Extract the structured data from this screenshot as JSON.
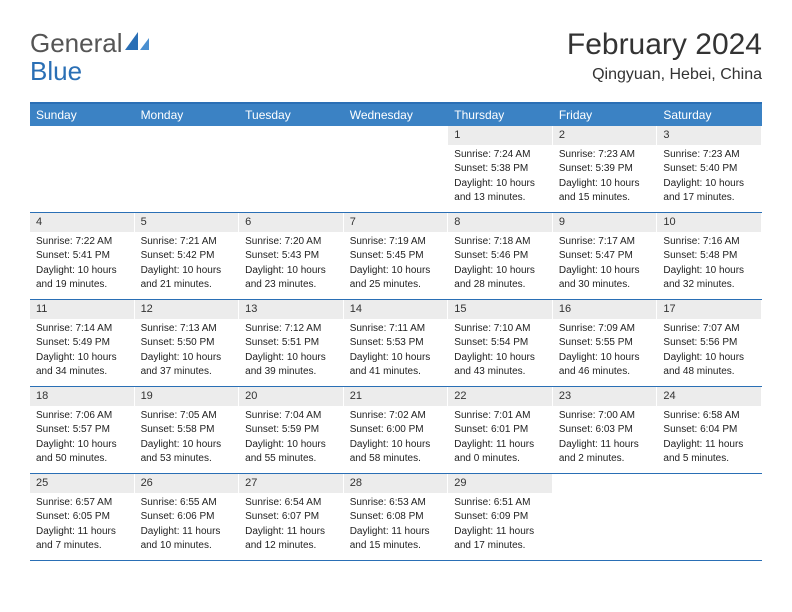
{
  "logo": {
    "text1": "General",
    "text2": "Blue"
  },
  "title": "February 2024",
  "location": "Qingyuan, Hebei, China",
  "colors": {
    "headerBlue": "#3b82c4",
    "borderBlue": "#2a6fb5",
    "dateBg": "#ececec",
    "logoBlue": "#2a6fb5",
    "text": "#333333"
  },
  "dayNames": [
    "Sunday",
    "Monday",
    "Tuesday",
    "Wednesday",
    "Thursday",
    "Friday",
    "Saturday"
  ],
  "weeks": [
    [
      null,
      null,
      null,
      null,
      {
        "d": "1",
        "sr": "7:24 AM",
        "ss": "5:38 PM",
        "dl1": "Daylight: 10 hours",
        "dl2": "and 13 minutes."
      },
      {
        "d": "2",
        "sr": "7:23 AM",
        "ss": "5:39 PM",
        "dl1": "Daylight: 10 hours",
        "dl2": "and 15 minutes."
      },
      {
        "d": "3",
        "sr": "7:23 AM",
        "ss": "5:40 PM",
        "dl1": "Daylight: 10 hours",
        "dl2": "and 17 minutes."
      }
    ],
    [
      {
        "d": "4",
        "sr": "7:22 AM",
        "ss": "5:41 PM",
        "dl1": "Daylight: 10 hours",
        "dl2": "and 19 minutes."
      },
      {
        "d": "5",
        "sr": "7:21 AM",
        "ss": "5:42 PM",
        "dl1": "Daylight: 10 hours",
        "dl2": "and 21 minutes."
      },
      {
        "d": "6",
        "sr": "7:20 AM",
        "ss": "5:43 PM",
        "dl1": "Daylight: 10 hours",
        "dl2": "and 23 minutes."
      },
      {
        "d": "7",
        "sr": "7:19 AM",
        "ss": "5:45 PM",
        "dl1": "Daylight: 10 hours",
        "dl2": "and 25 minutes."
      },
      {
        "d": "8",
        "sr": "7:18 AM",
        "ss": "5:46 PM",
        "dl1": "Daylight: 10 hours",
        "dl2": "and 28 minutes."
      },
      {
        "d": "9",
        "sr": "7:17 AM",
        "ss": "5:47 PM",
        "dl1": "Daylight: 10 hours",
        "dl2": "and 30 minutes."
      },
      {
        "d": "10",
        "sr": "7:16 AM",
        "ss": "5:48 PM",
        "dl1": "Daylight: 10 hours",
        "dl2": "and 32 minutes."
      }
    ],
    [
      {
        "d": "11",
        "sr": "7:14 AM",
        "ss": "5:49 PM",
        "dl1": "Daylight: 10 hours",
        "dl2": "and 34 minutes."
      },
      {
        "d": "12",
        "sr": "7:13 AM",
        "ss": "5:50 PM",
        "dl1": "Daylight: 10 hours",
        "dl2": "and 37 minutes."
      },
      {
        "d": "13",
        "sr": "7:12 AM",
        "ss": "5:51 PM",
        "dl1": "Daylight: 10 hours",
        "dl2": "and 39 minutes."
      },
      {
        "d": "14",
        "sr": "7:11 AM",
        "ss": "5:53 PM",
        "dl1": "Daylight: 10 hours",
        "dl2": "and 41 minutes."
      },
      {
        "d": "15",
        "sr": "7:10 AM",
        "ss": "5:54 PM",
        "dl1": "Daylight: 10 hours",
        "dl2": "and 43 minutes."
      },
      {
        "d": "16",
        "sr": "7:09 AM",
        "ss": "5:55 PM",
        "dl1": "Daylight: 10 hours",
        "dl2": "and 46 minutes."
      },
      {
        "d": "17",
        "sr": "7:07 AM",
        "ss": "5:56 PM",
        "dl1": "Daylight: 10 hours",
        "dl2": "and 48 minutes."
      }
    ],
    [
      {
        "d": "18",
        "sr": "7:06 AM",
        "ss": "5:57 PM",
        "dl1": "Daylight: 10 hours",
        "dl2": "and 50 minutes."
      },
      {
        "d": "19",
        "sr": "7:05 AM",
        "ss": "5:58 PM",
        "dl1": "Daylight: 10 hours",
        "dl2": "and 53 minutes."
      },
      {
        "d": "20",
        "sr": "7:04 AM",
        "ss": "5:59 PM",
        "dl1": "Daylight: 10 hours",
        "dl2": "and 55 minutes."
      },
      {
        "d": "21",
        "sr": "7:02 AM",
        "ss": "6:00 PM",
        "dl1": "Daylight: 10 hours",
        "dl2": "and 58 minutes."
      },
      {
        "d": "22",
        "sr": "7:01 AM",
        "ss": "6:01 PM",
        "dl1": "Daylight: 11 hours",
        "dl2": "and 0 minutes."
      },
      {
        "d": "23",
        "sr": "7:00 AM",
        "ss": "6:03 PM",
        "dl1": "Daylight: 11 hours",
        "dl2": "and 2 minutes."
      },
      {
        "d": "24",
        "sr": "6:58 AM",
        "ss": "6:04 PM",
        "dl1": "Daylight: 11 hours",
        "dl2": "and 5 minutes."
      }
    ],
    [
      {
        "d": "25",
        "sr": "6:57 AM",
        "ss": "6:05 PM",
        "dl1": "Daylight: 11 hours",
        "dl2": "and 7 minutes."
      },
      {
        "d": "26",
        "sr": "6:55 AM",
        "ss": "6:06 PM",
        "dl1": "Daylight: 11 hours",
        "dl2": "and 10 minutes."
      },
      {
        "d": "27",
        "sr": "6:54 AM",
        "ss": "6:07 PM",
        "dl1": "Daylight: 11 hours",
        "dl2": "and 12 minutes."
      },
      {
        "d": "28",
        "sr": "6:53 AM",
        "ss": "6:08 PM",
        "dl1": "Daylight: 11 hours",
        "dl2": "and 15 minutes."
      },
      {
        "d": "29",
        "sr": "6:51 AM",
        "ss": "6:09 PM",
        "dl1": "Daylight: 11 hours",
        "dl2": "and 17 minutes."
      },
      null,
      null
    ]
  ],
  "labels": {
    "sunrise": "Sunrise:",
    "sunset": "Sunset:"
  }
}
